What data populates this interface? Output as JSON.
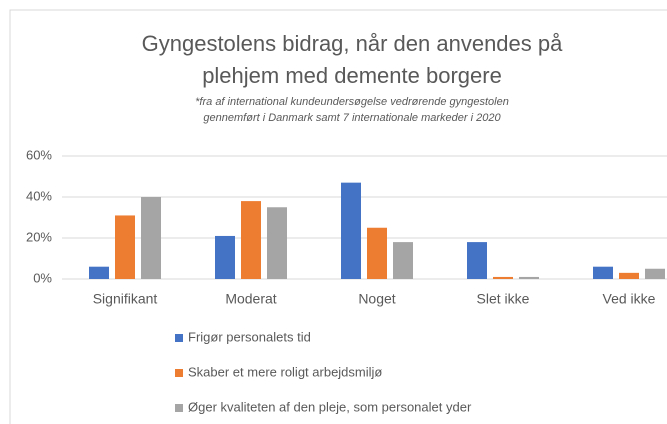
{
  "chart_data": {
    "type": "bar",
    "title": [
      "Gyngestolens bidrag, når den anvendes på",
      "plehjem med demente borgere"
    ],
    "subtitle": [
      "*fra af international kundeundersøgelse vedrørende gyngestolen",
      "gennemført i Danmark samt 7 internationale markeder i 2020"
    ],
    "categories": [
      "Signifikant",
      "Moderat",
      "Noget",
      "Slet ikke",
      "Ved ikke"
    ],
    "series": [
      {
        "name": "Frigør personalets tid",
        "color": "#4472c4",
        "values": [
          6,
          21,
          47,
          18,
          6
        ]
      },
      {
        "name": "Skaber et mere roligt arbejdsmiljø",
        "color": "#ed7d31",
        "values": [
          31,
          38,
          25,
          1,
          3
        ]
      },
      {
        "name": "Øger kvaliteten af den pleje, som personalet yder",
        "color": "#a5a5a5",
        "values": [
          40,
          35,
          18,
          1,
          5
        ]
      }
    ],
    "ylim": [
      0,
      60
    ],
    "yticks": [
      {
        "value": 0,
        "label": "0%"
      },
      {
        "value": 20,
        "label": "20%"
      },
      {
        "value": 40,
        "label": "40%"
      },
      {
        "value": 60,
        "label": "60%"
      }
    ],
    "grid": true,
    "legend": "bottom"
  }
}
